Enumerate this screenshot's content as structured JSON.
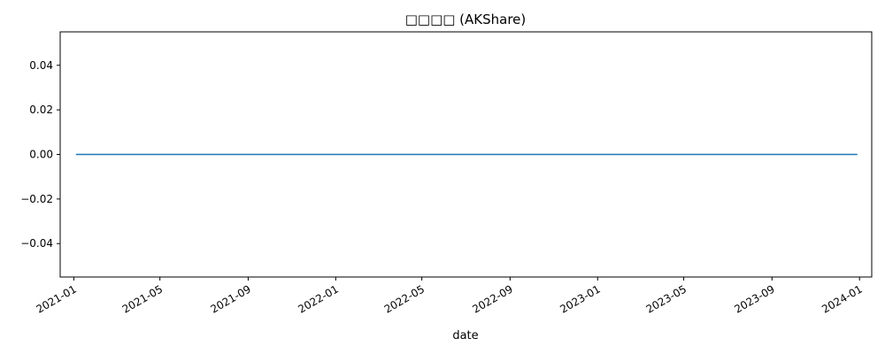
{
  "chart_data": {
    "type": "line",
    "title": "□□□□ (AKShare)",
    "xlabel": "date",
    "ylabel": "",
    "x_range": [
      "2020-12-13",
      "2024-01-18"
    ],
    "ylim": [
      -0.055,
      0.055
    ],
    "x_ticks": [
      "2021-01",
      "2021-05",
      "2021-09",
      "2022-01",
      "2022-05",
      "2022-09",
      "2023-01",
      "2023-05",
      "2023-09",
      "2024-01"
    ],
    "y_ticks": [
      "0.04",
      "0.02",
      "0.00",
      "−0.02",
      "−0.04"
    ],
    "series": [
      {
        "color": "#1f77b4",
        "x": [
          "2021-01-04",
          "2023-12-29"
        ],
        "y": [
          0.0,
          0.0
        ]
      }
    ],
    "grid": false,
    "legend": "none"
  }
}
